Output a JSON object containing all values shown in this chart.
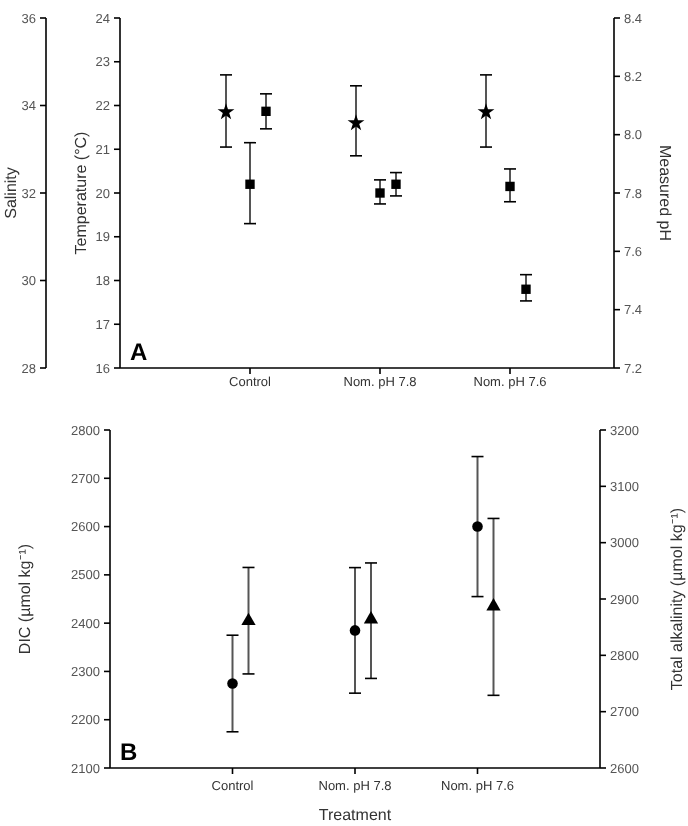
{
  "chart_data": [
    {
      "type": "scatter",
      "categories": [
        "Control",
        "Nom. pH 7.8",
        "Nom. pH 7.6"
      ],
      "ylabel": "Temperature (°C)",
      "ylim": [
        16,
        24
      ],
      "yticks": [
        16,
        17,
        18,
        19,
        20,
        21,
        22,
        23,
        24
      ],
      "y2label": "Measured pH",
      "y2lim": [
        7.2,
        8.4
      ],
      "y2ticks": [
        {
          "value": 7.2,
          "label": "7.2"
        },
        {
          "value": 7.4,
          "label": "7.4"
        },
        {
          "value": 7.6,
          "label": "7.6"
        },
        {
          "value": 7.8,
          "label": "7.8"
        },
        {
          "value": 8.0,
          "label": "8.0"
        },
        {
          "value": 8.2,
          "label": "8.2"
        },
        {
          "value": 8.4,
          "label": "8.4"
        }
      ],
      "y3label": "Salinity",
      "y3lim": [
        28,
        36
      ],
      "y3ticks": [
        28,
        30,
        32,
        34,
        36
      ],
      "annotations": [
        "A"
      ],
      "series": [
        {
          "color": "#000000",
          "marker": "star",
          "axis": "y3",
          "values": [
            33.85,
            33.6,
            33.85
          ],
          "errors": [
            [
              33.05,
              34.7
            ],
            [
              32.85,
              34.45
            ],
            [
              33.05,
              34.7
            ]
          ]
        },
        {
          "color": "#000000",
          "marker": "square",
          "axis": "y",
          "values": [
            20.2,
            20.0,
            20.15
          ],
          "errors": [
            [
              19.3,
              21.15
            ],
            [
              19.75,
              20.3
            ],
            [
              19.8,
              20.55
            ]
          ]
        },
        {
          "color": "#000000",
          "marker": "square",
          "axis": "y2",
          "values": [
            8.08,
            7.83,
            7.47
          ],
          "errors": [
            [
              8.02,
              8.14
            ],
            [
              7.79,
              7.87
            ],
            [
              7.43,
              7.52
            ]
          ]
        }
      ]
    },
    {
      "type": "scatter",
      "categories": [
        "Control",
        "Nom. pH 7.8",
        "Nom. pH 7.6"
      ],
      "xlabel": "Treatment",
      "ylabel": "DIC (µmol kg⁻¹)",
      "ylim": [
        2100,
        2800
      ],
      "yticks": [
        2100,
        2200,
        2300,
        2400,
        2500,
        2600,
        2700,
        2800
      ],
      "y2label": "Total alkalinity (µmol kg⁻¹)",
      "y2lim": [
        2600,
        3200
      ],
      "y2ticks": [
        2600,
        2700,
        2800,
        2900,
        3000,
        3100,
        3200
      ],
      "annotations": [
        "B"
      ],
      "series": [
        {
          "color": "#000000",
          "marker": "circle",
          "axis": "y",
          "values": [
            2275,
            2385,
            2600
          ],
          "errors": [
            [
              2175,
              2375
            ],
            [
              2255,
              2515
            ],
            [
              2455,
              2745
            ]
          ]
        },
        {
          "color": "#000000",
          "marker": "triangle",
          "axis": "y2",
          "values": [
            2861,
            2864,
            2887
          ],
          "errors": [
            [
              2767,
              2956
            ],
            [
              2759,
              2964
            ],
            [
              2729,
              3043
            ]
          ]
        }
      ]
    }
  ]
}
